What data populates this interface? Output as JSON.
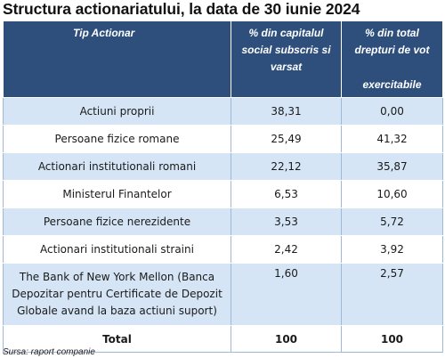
{
  "title": "Structura actionariatului, la data de 30 iunie 2024",
  "table": {
    "headers": {
      "tip": "Tip Actionar",
      "capital_l1": "% din capitalul",
      "capital_l2": "social subscris si",
      "capital_l3": "varsat",
      "vot_l1": "% din total",
      "vot_l2": "drepturi de vot",
      "vot_l3": "exercitabile"
    },
    "rows": [
      {
        "tip": "Actiuni proprii",
        "capital": "38,31",
        "vot": "0,00"
      },
      {
        "tip": "Persoane fizice romane",
        "capital": "25,49",
        "vot": "41,32"
      },
      {
        "tip": "Actionari institutionali romani",
        "capital": "22,12",
        "vot": "35,87"
      },
      {
        "tip": "Ministerul Finantelor",
        "capital": "6,53",
        "vot": "10,60"
      },
      {
        "tip": "Persoane fizice nerezidente",
        "capital": "3,53",
        "vot": "5,72"
      },
      {
        "tip": "Actionari institutionali straini",
        "capital": "2,42",
        "vot": "3,92"
      },
      {
        "tip": "The Bank of New York Mellon (Banca Depozitar pentru Certificate de Depozit Globale avand la baza actiuni suport)",
        "capital": "1,60",
        "vot": "2,57"
      }
    ],
    "total": {
      "tip": "Total",
      "capital": "100",
      "vot": "100"
    }
  },
  "source": "Sursa: raport companie"
}
